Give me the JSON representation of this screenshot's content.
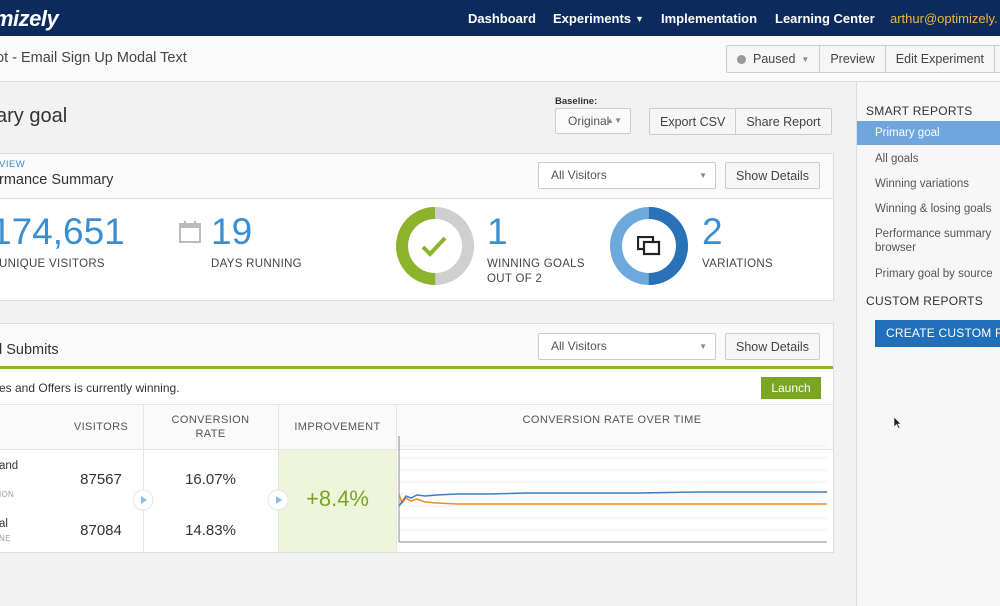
{
  "nav": {
    "logo": "mizely",
    "links": [
      "Dashboard",
      "Experiments",
      "Implementation",
      "Learning Center"
    ],
    "user": "arthur@optimizely."
  },
  "subheader": {
    "title": "ot - Email Sign Up Modal Text",
    "status": "Paused",
    "preview": "Preview",
    "edit": "Edit Experiment"
  },
  "main": {
    "heading": "ary goal",
    "baseline_label": "Baseline:",
    "baseline_value": "Original",
    "export_csv": "Export CSV",
    "share_report": "Share Report"
  },
  "summary": {
    "overview_label": "VIEW",
    "title": "rmance Summary",
    "segment": "All Visitors",
    "show_details": "Show Details",
    "visitors_value": "174,651",
    "visitors_label": "UNIQUE VISITORS",
    "days_value": "19",
    "days_label": "DAYS RUNNING",
    "winning_value": "1",
    "winning_label_1": "WINNING GOALS",
    "winning_label_2": "OUT OF 2",
    "variations_value": "2",
    "variations_label": "VARIATIONS"
  },
  "goal": {
    "title": "l Submits",
    "segment": "All Visitors",
    "show_details": "Show Details",
    "banner": "es and Offers is currently winning.",
    "launch": "Launch",
    "headers": {
      "visitors": "VISITORS",
      "conversion_1": "CONVERSION",
      "conversion_2": "RATE",
      "improvement": "IMPROVEMENT",
      "over_time": "CONVERSION RATE OVER TIME"
    },
    "rows": [
      {
        "name": "and",
        "sub": "ION",
        "visitors": "87567",
        "rate": "16.07%"
      },
      {
        "name": "al",
        "sub": "NE",
        "visitors": "87084",
        "rate": "14.83%"
      }
    ],
    "improvement": "+8.4%"
  },
  "sidebar": {
    "smart_reports": "SMART REPORTS",
    "items": [
      "Primary goal",
      "All goals",
      "Winning variations",
      "Winning & losing goals",
      "Performance summary",
      "browser",
      "Primary goal by source"
    ],
    "custom_reports": "CUSTOM REPORTS",
    "create": "CREATE CUSTOM R"
  },
  "colors": {
    "nav_bg": "#0d2a5c",
    "accent_blue": "#3a8ed1",
    "win_green": "#8db32b",
    "line_orange": "#f08a24",
    "line_blue": "#3a7fc1"
  },
  "icons": [
    "calendar-icon",
    "checkmark-icon",
    "variations-icon",
    "play-icon",
    "mouse-cursor-icon"
  ]
}
